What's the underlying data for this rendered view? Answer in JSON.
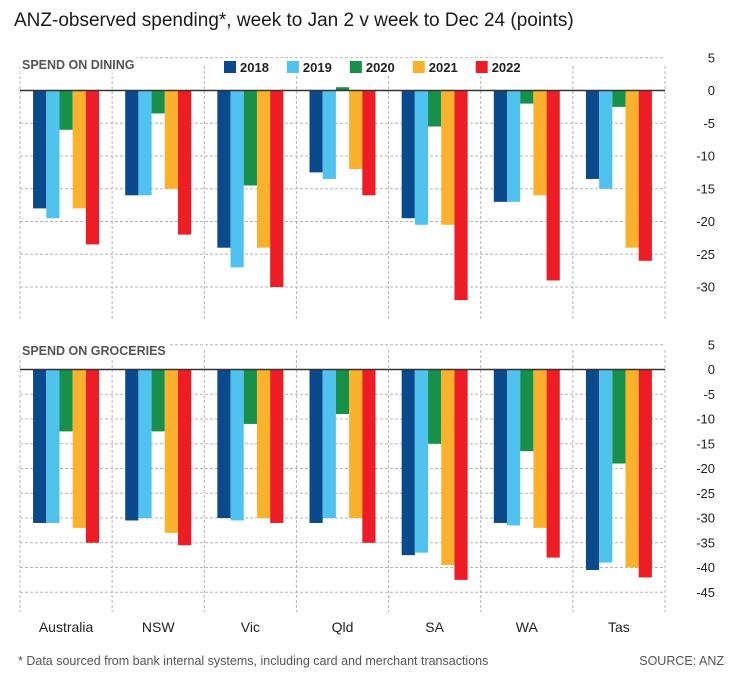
{
  "title": "ANZ-observed spending*, week to Jan 2 v week to Dec 24 (points)",
  "footnote": "* Data sourced from bank internal systems, including card and merchant transactions",
  "source": "SOURCE: ANZ",
  "colors": {
    "2018": "#0a4a8c",
    "2019": "#4fc3ee",
    "2020": "#17904a",
    "2021": "#fbb12b",
    "2022": "#ee1c25"
  },
  "chart_data": [
    {
      "type": "bar",
      "title": "SPEND ON DINING",
      "categories": [
        "Australia",
        "NSW",
        "Vic",
        "Qld",
        "SA",
        "WA",
        "Tas"
      ],
      "yticks": [
        5,
        0,
        -5,
        -10,
        -15,
        -20,
        -25,
        -30
      ],
      "ylim": [
        -33.5,
        5
      ],
      "grid": true,
      "legend": "top-center",
      "series": [
        {
          "name": "2018",
          "values": [
            -18,
            -16,
            -24,
            -12.5,
            -19.5,
            -17,
            -13.5
          ]
        },
        {
          "name": "2019",
          "values": [
            -19.5,
            -16,
            -27,
            -13.5,
            -20.5,
            -17,
            -15
          ]
        },
        {
          "name": "2020",
          "values": [
            -6,
            -3.5,
            -14.5,
            0.5,
            -5.5,
            -2,
            -2.5
          ]
        },
        {
          "name": "2021",
          "values": [
            -18,
            -15,
            -24,
            -12,
            -20.5,
            -16,
            -24
          ]
        },
        {
          "name": "2022",
          "values": [
            -23.5,
            -22,
            -30,
            -16,
            -32,
            -29,
            -26
          ]
        }
      ]
    },
    {
      "type": "bar",
      "title": "SPEND ON GROCERIES",
      "categories": [
        "Australia",
        "NSW",
        "Vic",
        "Qld",
        "SA",
        "WA",
        "Tas"
      ],
      "yticks": [
        5,
        0,
        -5,
        -10,
        -15,
        -20,
        -25,
        -30,
        -35,
        -40,
        -45
      ],
      "ylim": [
        -48,
        5
      ],
      "grid": true,
      "series": [
        {
          "name": "2018",
          "values": [
            -31,
            -30.5,
            -30,
            -31,
            -37.5,
            -31,
            -40.5
          ]
        },
        {
          "name": "2019",
          "values": [
            -31,
            -30,
            -30.5,
            -30,
            -37,
            -31.5,
            -39
          ]
        },
        {
          "name": "2020",
          "values": [
            -12.5,
            -12.5,
            -11,
            -9,
            -15,
            -16.5,
            -19
          ]
        },
        {
          "name": "2021",
          "values": [
            -32,
            -33,
            -30,
            -30,
            -39.5,
            -32,
            -40
          ]
        },
        {
          "name": "2022",
          "values": [
            -35,
            -35.5,
            -31,
            -35,
            -42.5,
            -38,
            -42
          ]
        }
      ]
    }
  ]
}
